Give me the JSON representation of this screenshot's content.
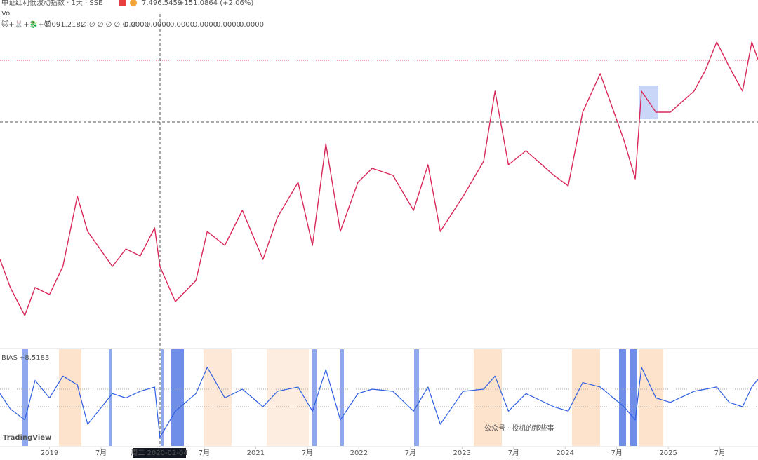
{
  "header": {
    "symbol": "中证红利低波动指数 · 1天 · SSE",
    "price": "7,496.5459",
    "change": "+151.0864 (+2.06%)",
    "vol": "Vol",
    "ind_value": "8,091.2182",
    "ind_nulls": "∅ ∅ ∅ ∅ ∅ ∅ ∅",
    "ind_zeros": [
      "0.0000",
      "0.0000",
      "0.0000",
      "0.0000",
      "0.0000",
      "0.0000"
    ],
    "bias_name": "BIAS",
    "bias_value": "+8.5183",
    "logo": "TradingView",
    "watermark": "公众号 · 投机的那些事",
    "crosshair_label": "周二 2020-02-04"
  },
  "chart_data": [
    {
      "type": "line",
      "xlim": [
        2018.52,
        2025.87
      ],
      "ylim": [
        2900,
        8000
      ],
      "xticks": [
        {
          "value": 2019,
          "label": "2019"
        },
        {
          "value": 2019.5,
          "label": "7月"
        },
        {
          "value": 2020.5,
          "label": "7月"
        },
        {
          "value": 2021,
          "label": "2021"
        },
        {
          "value": 2021.5,
          "label": "7月"
        },
        {
          "value": 2022,
          "label": "2022"
        },
        {
          "value": 2022.5,
          "label": "7月"
        },
        {
          "value": 2023,
          "label": "2023"
        },
        {
          "value": 2023.5,
          "label": "7月"
        },
        {
          "value": 2024,
          "label": "2024"
        },
        {
          "value": 2024.5,
          "label": "7月"
        },
        {
          "value": 2025,
          "label": "2025"
        },
        {
          "value": 2025.5,
          "label": "7月"
        }
      ],
      "x": [
        2018.52,
        2018.62,
        2018.76,
        2018.86,
        2019.0,
        2019.13,
        2019.27,
        2019.37,
        2019.61,
        2019.74,
        2019.88,
        2020.02,
        2020.07,
        2020.22,
        2020.42,
        2020.53,
        2020.7,
        2020.87,
        2021.07,
        2021.21,
        2021.41,
        2021.55,
        2021.68,
        2021.82,
        2021.99,
        2022.13,
        2022.33,
        2022.53,
        2022.67,
        2022.79,
        2023.01,
        2023.21,
        2023.32,
        2023.45,
        2023.62,
        2023.89,
        2024.03,
        2024.17,
        2024.34,
        2024.57,
        2024.68,
        2024.74,
        2024.88,
        2025.02,
        2025.25,
        2025.36,
        2025.47,
        2025.59,
        2025.72,
        2025.81,
        2025.87
      ],
      "series": [
        {
          "color": "#d9285a",
          "values": [
            4260,
            3807,
            3353,
            3807,
            3693,
            4147,
            5280,
            4713,
            4147,
            4430,
            4317,
            4770,
            4147,
            3580,
            3920,
            4713,
            4487,
            5053,
            4260,
            4940,
            5507,
            4487,
            6130,
            4713,
            5507,
            5733,
            5620,
            5053,
            5790,
            4713,
            5280,
            5847,
            6980,
            5790,
            6017,
            5620,
            5450,
            6640,
            7263,
            6187,
            5563,
            6980,
            6640,
            6640,
            6980,
            7320,
            7773,
            7377,
            6980,
            7773,
            7490
          ]
        }
      ]
    },
    {
      "type": "line",
      "xlim": [
        2018.52,
        2025.87
      ],
      "ylim": [
        -20,
        20
      ],
      "x": [
        2018.52,
        2018.62,
        2018.76,
        2018.86,
        2019.0,
        2019.13,
        2019.27,
        2019.37,
        2019.61,
        2019.74,
        2019.88,
        2020.02,
        2020.07,
        2020.22,
        2020.42,
        2020.53,
        2020.7,
        2020.87,
        2021.07,
        2021.21,
        2021.41,
        2021.55,
        2021.68,
        2021.82,
        2021.99,
        2022.13,
        2022.33,
        2022.53,
        2022.67,
        2022.79,
        2023.01,
        2023.21,
        2023.32,
        2023.45,
        2023.62,
        2023.89,
        2024.03,
        2024.17,
        2024.34,
        2024.57,
        2024.68,
        2024.74,
        2024.88,
        2025.02,
        2025.25,
        2025.36,
        2025.47,
        2025.59,
        2025.72,
        2025.81,
        2025.87
      ],
      "series": [
        {
          "color": "#2f5fe0",
          "values": [
            2,
            -5,
            -10,
            8,
            0,
            10,
            6,
            -12,
            2,
            0,
            3,
            5,
            -18,
            -6,
            2,
            14,
            0,
            4,
            -4,
            3,
            5,
            -6,
            13,
            -10,
            2,
            4,
            3,
            -6,
            5,
            -12,
            3,
            4,
            10,
            -6,
            2,
            -4,
            -6,
            7,
            5,
            -4,
            -10,
            14,
            0,
            -2,
            3,
            4,
            5,
            -2,
            -4,
            5,
            8.5183
          ]
        }
      ]
    }
  ]
}
